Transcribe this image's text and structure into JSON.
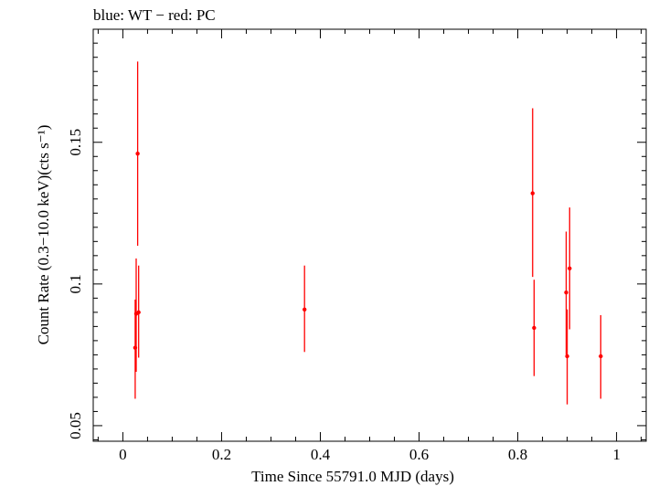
{
  "chart_data": {
    "type": "scatter",
    "title": "blue: WT − red: PC",
    "xlabel": "Time Since 55791.0 MJD (days)",
    "ylabel": "Count Rate (0.3−10.0 keV)(cts s⁻¹)",
    "xlim": [
      -0.06,
      1.06
    ],
    "ylim": [
      0.0445,
      0.1899
    ],
    "xticks": [
      0,
      0.2,
      0.4,
      0.6,
      0.8,
      1
    ],
    "xtick_labels": [
      "0",
      "0.2",
      "0.4",
      "0.6",
      "0.8",
      "1"
    ],
    "yticks": [
      0.05,
      0.1,
      0.15
    ],
    "ytick_labels": [
      "0.05",
      "0.1",
      "0.15"
    ],
    "grid": false,
    "series": [
      {
        "color": "#ff0000",
        "points": [
          {
            "x": 0.025,
            "y": 0.0775,
            "ylo": 0.0595,
            "yhi": 0.0945
          },
          {
            "x": 0.027,
            "y": 0.0895,
            "ylo": 0.069,
            "yhi": 0.109
          },
          {
            "x": 0.03,
            "y": 0.146,
            "ylo": 0.1135,
            "yhi": 0.1785
          },
          {
            "x": 0.032,
            "y": 0.09,
            "ylo": 0.074,
            "yhi": 0.1065
          },
          {
            "x": 0.368,
            "y": 0.091,
            "ylo": 0.076,
            "yhi": 0.1065
          },
          {
            "x": 0.83,
            "y": 0.132,
            "ylo": 0.1025,
            "yhi": 0.162
          },
          {
            "x": 0.833,
            "y": 0.0845,
            "ylo": 0.0675,
            "yhi": 0.1015
          },
          {
            "x": 0.898,
            "y": 0.097,
            "ylo": 0.075,
            "yhi": 0.1185
          },
          {
            "x": 0.9,
            "y": 0.0745,
            "ylo": 0.0575,
            "yhi": 0.091
          },
          {
            "x": 0.905,
            "y": 0.1055,
            "ylo": 0.084,
            "yhi": 0.127
          },
          {
            "x": 0.968,
            "y": 0.0745,
            "ylo": 0.0595,
            "yhi": 0.089
          }
        ]
      }
    ]
  }
}
